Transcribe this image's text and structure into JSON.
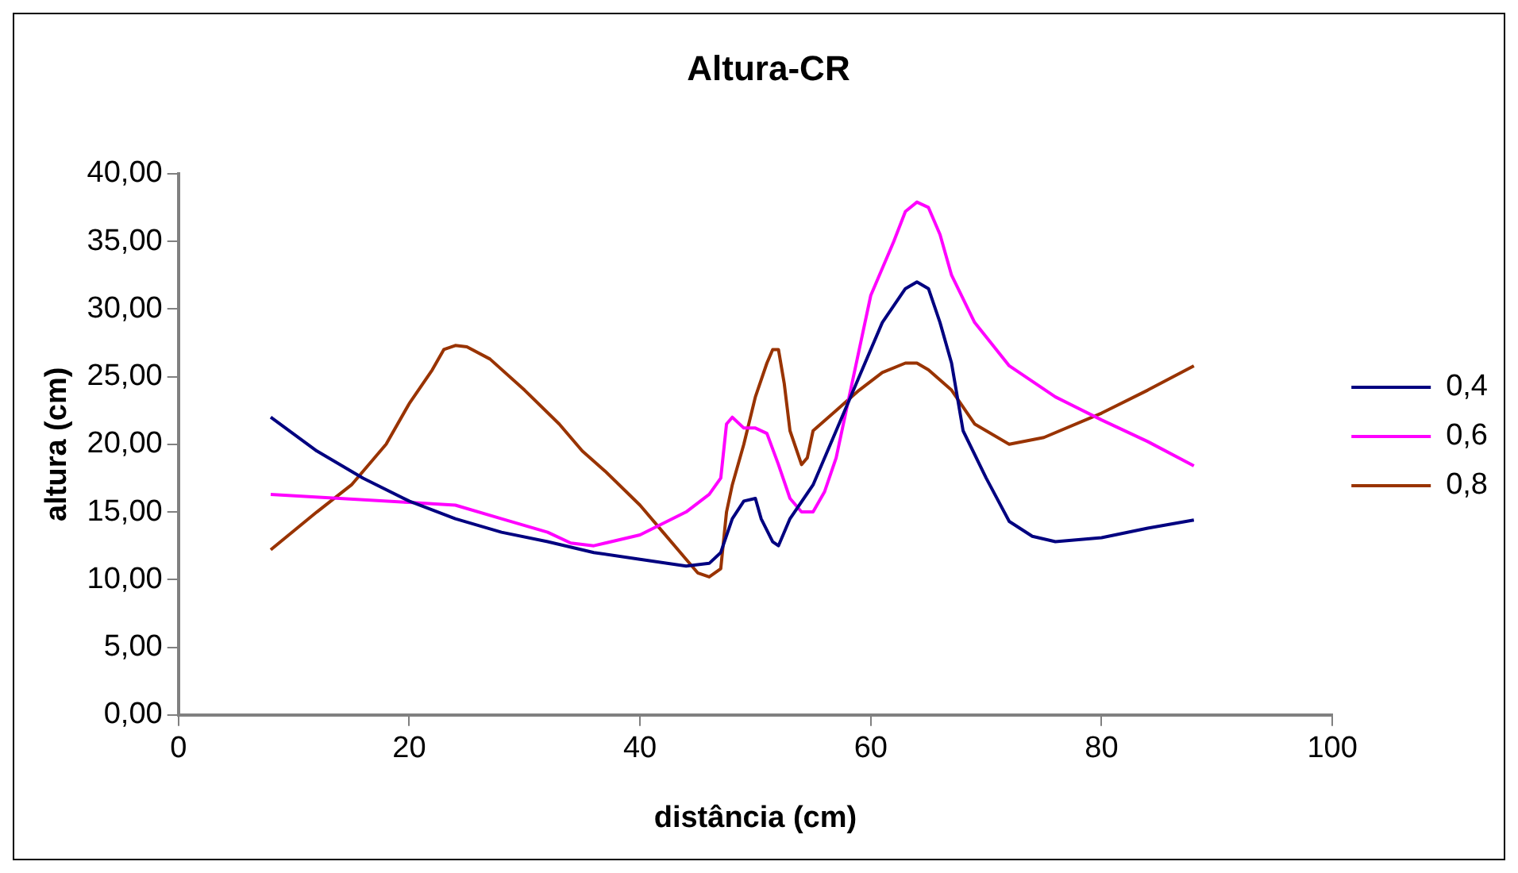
{
  "chart_data": {
    "type": "line",
    "title": "Altura-CR",
    "xlabel": "distância (cm)",
    "ylabel": "altura (cm)",
    "xlim": [
      0,
      100
    ],
    "xticks": [
      0,
      20,
      40,
      60,
      80,
      100
    ],
    "ylim": [
      0,
      40
    ],
    "yticks": [
      {
        "value": 0,
        "label": "0,00"
      },
      {
        "value": 5,
        "label": "5,00"
      },
      {
        "value": 10,
        "label": "10,00"
      },
      {
        "value": 15,
        "label": "15,00"
      },
      {
        "value": 20,
        "label": "20,00"
      },
      {
        "value": 25,
        "label": "25,00"
      },
      {
        "value": 30,
        "label": "30,00"
      },
      {
        "value": 35,
        "label": "35,00"
      },
      {
        "value": 40,
        "label": "40,00"
      }
    ],
    "grid": false,
    "legend": "right",
    "marker": "none",
    "line_style": "solid",
    "series": [
      {
        "name": "0,4",
        "color": "#000080",
        "x": [
          8,
          12,
          16,
          20,
          24,
          28,
          32,
          36,
          40,
          44,
          46,
          47,
          48,
          49,
          50,
          50.5,
          51.5,
          52,
          53,
          55,
          57,
          59,
          61,
          63,
          64,
          65,
          66,
          67,
          68,
          70,
          72,
          74,
          76,
          80,
          84,
          88
        ],
        "values": [
          22,
          19.5,
          17.5,
          15.8,
          14.5,
          13.5,
          12.8,
          12,
          11.5,
          11,
          11.2,
          12,
          14.5,
          15.8,
          16,
          14.5,
          12.8,
          12.5,
          14.5,
          17,
          21,
          25,
          29,
          31.5,
          32,
          31.5,
          29,
          26,
          21,
          17.5,
          14.3,
          13.2,
          12.8,
          13.1,
          13.8,
          14.4
        ]
      },
      {
        "name": "0,6",
        "color": "#ff00ff",
        "x": [
          8,
          20,
          24,
          28,
          32,
          34,
          36,
          40,
          44,
          46,
          47,
          47.5,
          48,
          49,
          50,
          51,
          52,
          53,
          54,
          55,
          56,
          57,
          58,
          59,
          60,
          62,
          63,
          64,
          65,
          66,
          67,
          69,
          72,
          76,
          80,
          84,
          88
        ],
        "values": [
          16.3,
          15.7,
          15.5,
          14.5,
          13.5,
          12.7,
          12.5,
          13.3,
          15,
          16.3,
          17.5,
          21.5,
          22,
          21.2,
          21.2,
          20.8,
          18.5,
          16,
          15,
          15,
          16.5,
          19,
          23,
          27,
          31,
          35,
          37.2,
          37.9,
          37.5,
          35.5,
          32.5,
          29,
          25.8,
          23.5,
          21.8,
          20.2,
          18.4
        ]
      },
      {
        "name": "0,8",
        "color": "#993300",
        "x": [
          8,
          12,
          15,
          18,
          20,
          22,
          23,
          24,
          25,
          27,
          30,
          33,
          35,
          37,
          40,
          42,
          44,
          45,
          46,
          47,
          47.5,
          48,
          49,
          50,
          51,
          51.5,
          52,
          52.5,
          53,
          54,
          54.5,
          55,
          57,
          59,
          61,
          63,
          64,
          65,
          67,
          69,
          72,
          75,
          80,
          84,
          88
        ],
        "values": [
          12.2,
          15,
          17,
          20,
          23,
          25.5,
          27,
          27.3,
          27.2,
          26.3,
          24,
          21.5,
          19.5,
          18,
          15.5,
          13.5,
          11.5,
          10.5,
          10.2,
          10.8,
          15,
          17,
          20,
          23.5,
          26,
          27,
          27,
          24.5,
          21,
          18.5,
          19,
          21,
          22.5,
          24,
          25.3,
          26,
          26,
          25.5,
          24,
          21.5,
          20,
          20.5,
          22.3,
          24,
          25.8
        ]
      }
    ]
  }
}
